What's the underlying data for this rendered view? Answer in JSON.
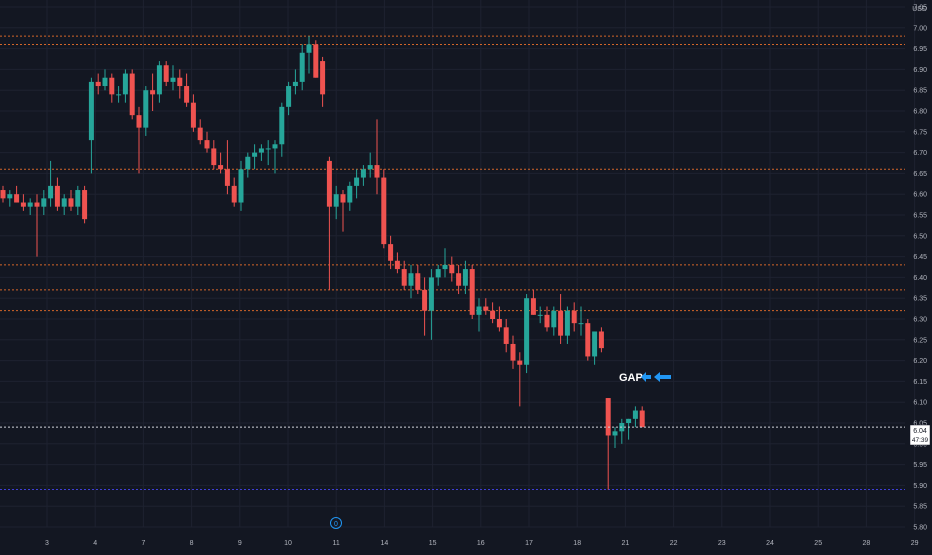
{
  "theme": {
    "background": "#131722",
    "grid": "#1e2230",
    "axis_text": "#b2b5be",
    "up_color": "#26a69a",
    "down_color": "#ef5350",
    "level_color": "#d4662a",
    "price_line_color": "#d1d4dc",
    "blue_level_color": "#3f3fd8",
    "arrow_color": "#2196f3"
  },
  "chart_data": {
    "type": "candlestick",
    "currency": "USD",
    "ylim": [
      5.78,
      7.1
    ],
    "y_ticks": [
      "7.05",
      "7.00",
      "6.95",
      "6.90",
      "6.85",
      "6.80",
      "6.75",
      "6.70",
      "6.65",
      "6.60",
      "6.55",
      "6.50",
      "6.45",
      "6.40",
      "6.35",
      "6.30",
      "6.25",
      "6.20",
      "6.15",
      "6.10",
      "6.05",
      "6.00",
      "5.95",
      "5.90",
      "5.85",
      "5.80"
    ],
    "x_ticks": [
      "3",
      "4",
      "7",
      "8",
      "9",
      "10",
      "11",
      "14",
      "15",
      "16",
      "17",
      "18",
      "21",
      "22",
      "23",
      "24",
      "25",
      "28",
      "29"
    ],
    "event_marker": "0",
    "last_price": "6.04",
    "countdown": "47:39",
    "annotation": "GAP",
    "horizontal_levels": [
      6.98,
      6.96,
      6.66,
      6.43,
      6.37,
      6.32
    ],
    "blue_level": 5.89,
    "candles": [
      [
        6.61,
        6.62,
        6.58,
        6.59
      ],
      [
        6.59,
        6.61,
        6.57,
        6.6
      ],
      [
        6.6,
        6.62,
        6.58,
        6.58
      ],
      [
        6.58,
        6.6,
        6.56,
        6.57
      ],
      [
        6.57,
        6.59,
        6.55,
        6.58
      ],
      [
        6.58,
        6.6,
        6.45,
        6.57
      ],
      [
        6.57,
        6.61,
        6.55,
        6.59
      ],
      [
        6.59,
        6.68,
        6.57,
        6.62
      ],
      [
        6.62,
        6.64,
        6.56,
        6.57
      ],
      [
        6.57,
        6.6,
        6.55,
        6.59
      ],
      [
        6.59,
        6.61,
        6.56,
        6.57
      ],
      [
        6.57,
        6.62,
        6.55,
        6.61
      ],
      [
        6.61,
        6.62,
        6.53,
        6.54
      ],
      [
        6.73,
        6.88,
        6.65,
        6.87
      ],
      [
        6.87,
        6.89,
        6.84,
        6.86
      ],
      [
        6.86,
        6.9,
        6.85,
        6.88
      ],
      [
        6.88,
        6.89,
        6.82,
        6.84
      ],
      [
        6.84,
        6.86,
        6.82,
        6.84
      ],
      [
        6.84,
        6.9,
        6.82,
        6.89
      ],
      [
        6.89,
        6.9,
        6.78,
        6.79
      ],
      [
        6.79,
        6.81,
        6.65,
        6.76
      ],
      [
        6.76,
        6.86,
        6.74,
        6.85
      ],
      [
        6.85,
        6.89,
        6.8,
        6.84
      ],
      [
        6.84,
        6.92,
        6.82,
        6.91
      ],
      [
        6.91,
        6.92,
        6.86,
        6.87
      ],
      [
        6.87,
        6.91,
        6.85,
        6.88
      ],
      [
        6.88,
        6.9,
        6.83,
        6.86
      ],
      [
        6.86,
        6.89,
        6.81,
        6.82
      ],
      [
        6.82,
        6.84,
        6.75,
        6.76
      ],
      [
        6.76,
        6.78,
        6.72,
        6.73
      ],
      [
        6.73,
        6.75,
        6.7,
        6.71
      ],
      [
        6.71,
        6.73,
        6.66,
        6.67
      ],
      [
        6.67,
        6.7,
        6.65,
        6.66
      ],
      [
        6.66,
        6.73,
        6.6,
        6.62
      ],
      [
        6.62,
        6.64,
        6.57,
        6.58
      ],
      [
        6.58,
        6.68,
        6.56,
        6.66
      ],
      [
        6.66,
        6.7,
        6.64,
        6.69
      ],
      [
        6.69,
        6.72,
        6.66,
        6.7
      ],
      [
        6.7,
        6.72,
        6.68,
        6.71
      ],
      [
        6.71,
        6.73,
        6.67,
        6.71
      ],
      [
        6.71,
        6.73,
        6.65,
        6.72
      ],
      [
        6.72,
        6.82,
        6.69,
        6.81
      ],
      [
        6.81,
        6.87,
        6.79,
        6.86
      ],
      [
        6.86,
        6.9,
        6.84,
        6.87
      ],
      [
        6.87,
        6.96,
        6.85,
        6.94
      ],
      [
        6.94,
        6.98,
        6.89,
        6.96
      ],
      [
        6.96,
        6.97,
        6.88,
        6.88
      ],
      [
        6.92,
        6.93,
        6.81,
        6.84
      ],
      [
        6.68,
        6.69,
        6.37,
        6.57
      ],
      [
        6.57,
        6.62,
        6.54,
        6.6
      ],
      [
        6.6,
        6.61,
        6.51,
        6.58
      ],
      [
        6.58,
        6.63,
        6.56,
        6.62
      ],
      [
        6.62,
        6.66,
        6.59,
        6.64
      ],
      [
        6.64,
        6.67,
        6.62,
        6.66
      ],
      [
        6.66,
        6.7,
        6.64,
        6.67
      ],
      [
        6.67,
        6.78,
        6.6,
        6.64
      ],
      [
        6.64,
        6.66,
        6.47,
        6.48
      ],
      [
        6.48,
        6.5,
        6.42,
        6.44
      ],
      [
        6.44,
        6.46,
        6.41,
        6.42
      ],
      [
        6.42,
        6.44,
        6.37,
        6.38
      ],
      [
        6.38,
        6.43,
        6.35,
        6.41
      ],
      [
        6.41,
        6.43,
        6.36,
        6.37
      ],
      [
        6.37,
        6.4,
        6.26,
        6.32
      ],
      [
        6.32,
        6.42,
        6.25,
        6.4
      ],
      [
        6.4,
        6.43,
        6.38,
        6.42
      ],
      [
        6.42,
        6.47,
        6.4,
        6.43
      ],
      [
        6.43,
        6.45,
        6.39,
        6.41
      ],
      [
        6.41,
        6.43,
        6.36,
        6.38
      ],
      [
        6.38,
        6.44,
        6.36,
        6.42
      ],
      [
        6.42,
        6.43,
        6.3,
        6.31
      ],
      [
        6.31,
        6.35,
        6.27,
        6.33
      ],
      [
        6.33,
        6.35,
        6.31,
        6.32
      ],
      [
        6.32,
        6.34,
        6.29,
        6.3
      ],
      [
        6.3,
        6.33,
        6.27,
        6.28
      ],
      [
        6.28,
        6.3,
        6.22,
        6.24
      ],
      [
        6.24,
        6.26,
        6.18,
        6.2
      ],
      [
        6.2,
        6.22,
        6.09,
        6.19
      ],
      [
        6.19,
        6.36,
        6.17,
        6.35
      ],
      [
        6.35,
        6.37,
        6.31,
        6.31
      ],
      [
        6.31,
        6.33,
        6.29,
        6.31
      ],
      [
        6.31,
        6.33,
        6.27,
        6.28
      ],
      [
        6.28,
        6.33,
        6.26,
        6.32
      ],
      [
        6.32,
        6.36,
        6.24,
        6.26
      ],
      [
        6.26,
        6.33,
        6.24,
        6.32
      ],
      [
        6.32,
        6.34,
        6.27,
        6.29
      ],
      [
        6.29,
        6.33,
        6.26,
        6.29
      ],
      [
        6.29,
        6.3,
        6.2,
        6.21
      ],
      [
        6.21,
        6.27,
        6.19,
        6.27
      ],
      [
        6.27,
        6.28,
        6.22,
        6.23
      ],
      [
        6.11,
        6.11,
        5.89,
        6.02
      ],
      [
        6.02,
        6.04,
        5.99,
        6.03
      ],
      [
        6.03,
        6.06,
        6.0,
        6.05
      ],
      [
        6.05,
        6.06,
        6.01,
        6.06
      ],
      [
        6.06,
        6.09,
        6.04,
        6.08
      ],
      [
        6.08,
        6.09,
        6.04,
        6.04
      ]
    ]
  }
}
